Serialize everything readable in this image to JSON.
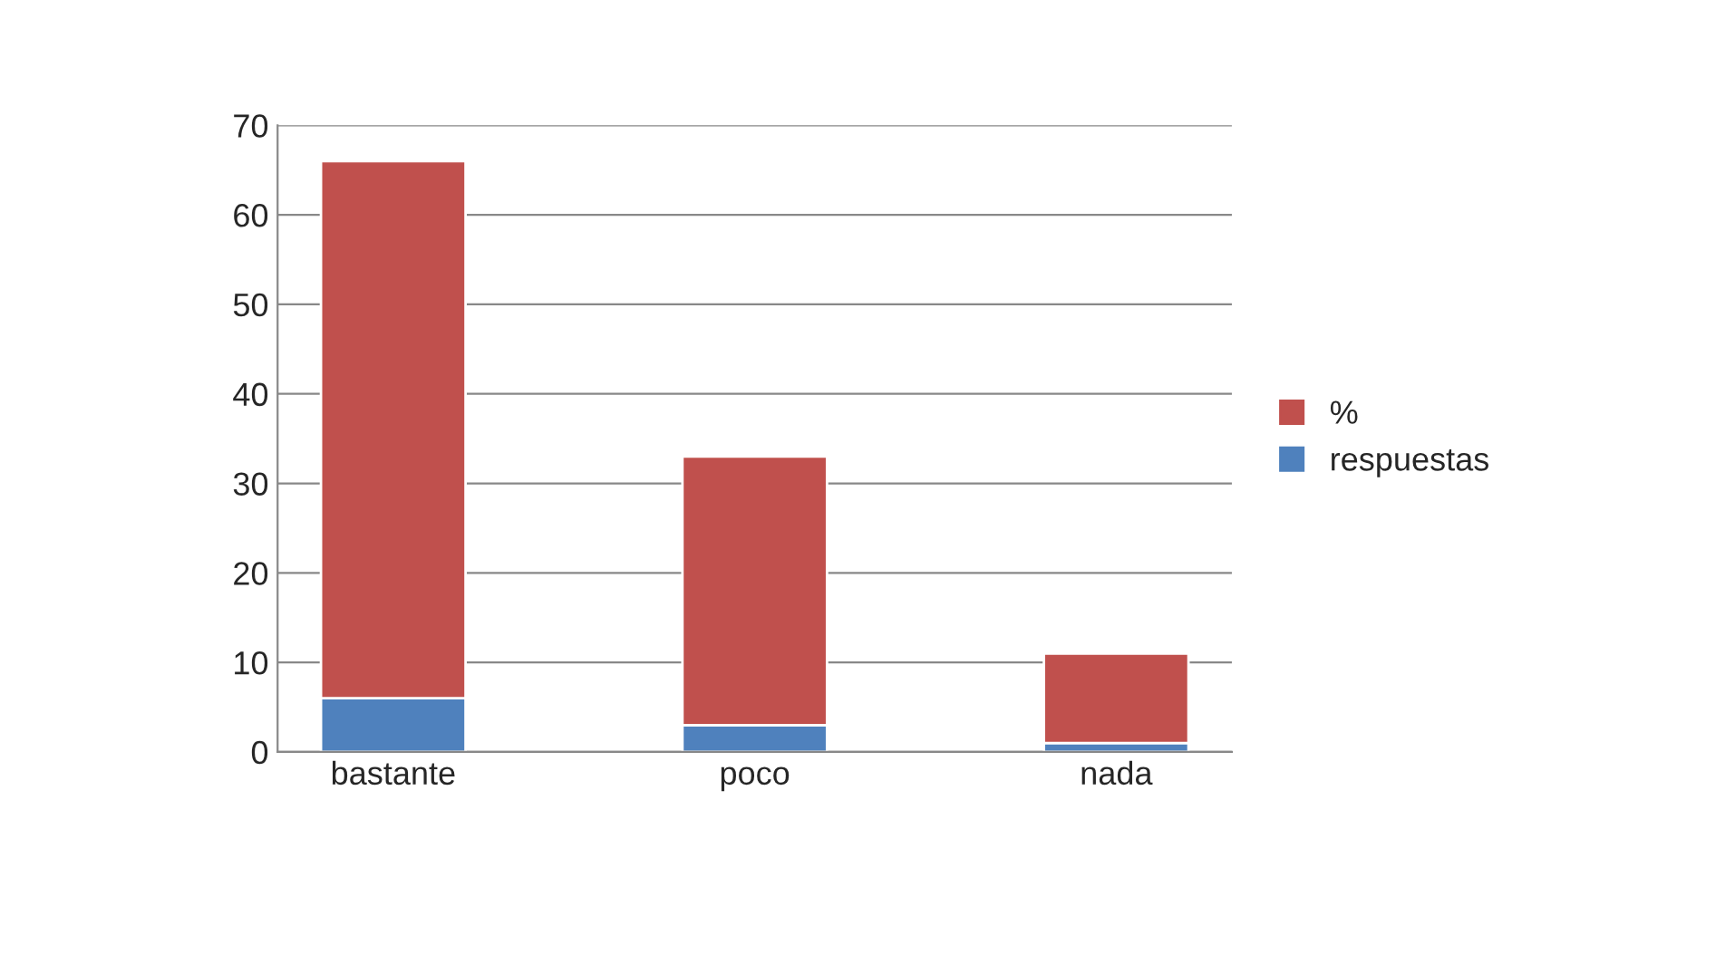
{
  "chart_data": {
    "type": "bar",
    "stacked": true,
    "categories": [
      "bastante",
      "poco",
      "nada"
    ],
    "series": [
      {
        "name": "respuestas",
        "color": "#4f81bd",
        "values": [
          6,
          3,
          1
        ]
      },
      {
        "name": "%",
        "color": "#c0504d",
        "values": [
          60,
          30,
          10
        ]
      }
    ],
    "ylim": [
      0,
      70
    ],
    "yticks": [
      0,
      10,
      20,
      30,
      40,
      50,
      60,
      70
    ],
    "grid": "y",
    "legend": "right"
  }
}
